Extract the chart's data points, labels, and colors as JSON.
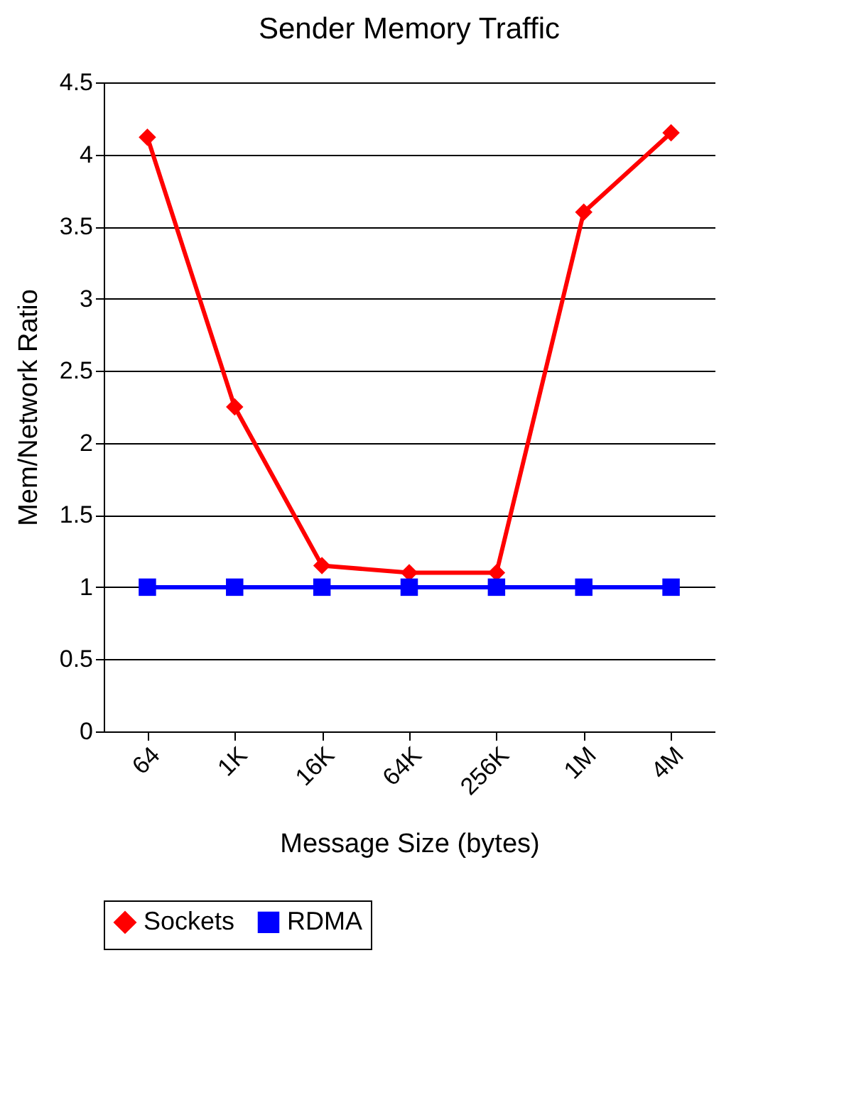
{
  "chart_data": {
    "type": "line",
    "title": "Sender Memory Traffic",
    "xlabel": "Message Size (bytes)",
    "ylabel": "Mem/Network Ratio",
    "categories": [
      "64",
      "1K",
      "16K",
      "64K",
      "256K",
      "1M",
      "4M"
    ],
    "series": [
      {
        "name": "Sockets",
        "color": "#ff0000",
        "marker": "diamond",
        "values": [
          4.12,
          2.25,
          1.15,
          1.1,
          1.1,
          3.6,
          4.15
        ]
      },
      {
        "name": "RDMA",
        "color": "#0000ff",
        "marker": "square",
        "values": [
          1,
          1,
          1,
          1,
          1,
          1,
          1
        ]
      }
    ],
    "ylim": [
      0,
      4.5
    ],
    "yticks": [
      0,
      0.5,
      1,
      1.5,
      2,
      2.5,
      3,
      3.5,
      4,
      4.5
    ],
    "grid": "y",
    "legend": "bottom"
  }
}
